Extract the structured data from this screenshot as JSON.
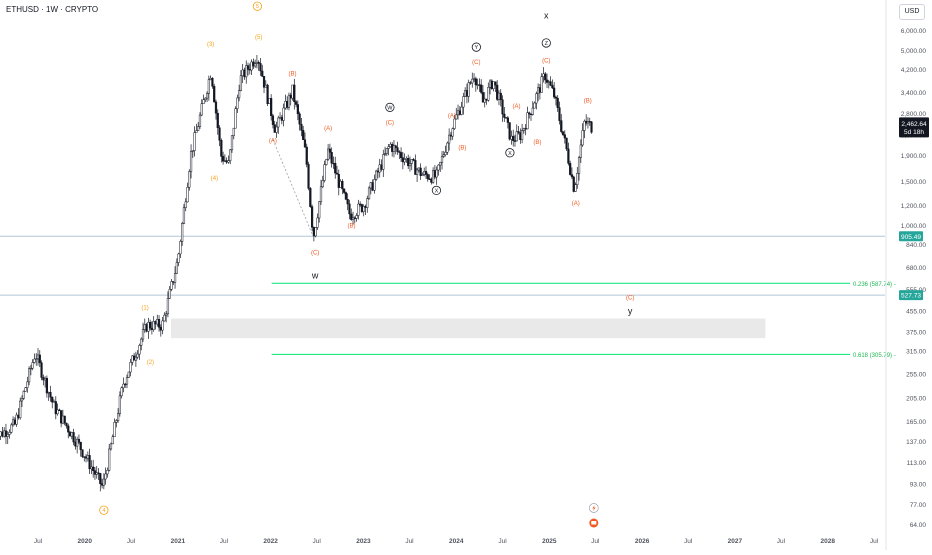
{
  "header": {
    "symbol_title": "ETHUSD · 1W · CRYPTO",
    "currency": "USD"
  },
  "colors": {
    "candle": "#131722",
    "wave_orange_primary": "#f7a21b",
    "wave_orange_intermediate": "#f05a22",
    "fib_line": "#00e676",
    "price_tag": "#131722",
    "level_tag": "#26a69a",
    "zone_fill": "#e9e9ea",
    "hline": "#b2c8d8"
  },
  "chart_data": {
    "type": "candlestick",
    "symbol": "ETHUSD",
    "interval": "1W",
    "exchange": "CRYPTO",
    "y_scale": "log",
    "ylim": [
      58,
      8000
    ],
    "y_ticks": [
      "6,000.00",
      "5,000.00",
      "4,200.00",
      "3,400.00",
      "2,800.00",
      "2,300.00",
      "1,900.00",
      "1,500.00",
      "1,200.00",
      "1,000.00",
      "840.00",
      "680.00",
      "555.00",
      "455.00",
      "375.00",
      "315.00",
      "255.00",
      "205.00",
      "165.00",
      "137.00",
      "113.00",
      "93.00",
      "77.00",
      "64.00"
    ],
    "y_tick_values": [
      6000,
      5000,
      4200,
      3400,
      2800,
      2300,
      1900,
      1500,
      1200,
      1000,
      840,
      680,
      555,
      455,
      375,
      315,
      255,
      205,
      165,
      137,
      113,
      93,
      77,
      64
    ],
    "x_ticks": [
      "Jul",
      "2020",
      "Jul",
      "2021",
      "Jul",
      "2022",
      "Jul",
      "2023",
      "Jul",
      "2024",
      "Jul",
      "2025",
      "Jul",
      "2026",
      "Jul",
      "2027",
      "Jul",
      "2028",
      "Jul"
    ],
    "x_tick_dates": [
      "2019-07-01",
      "2020-01-01",
      "2020-07-01",
      "2021-01-01",
      "2021-07-01",
      "2022-01-01",
      "2022-07-01",
      "2023-01-01",
      "2023-07-01",
      "2024-01-01",
      "2024-07-01",
      "2025-01-01",
      "2025-07-01",
      "2026-01-01",
      "2026-07-01",
      "2027-01-01",
      "2027-07-01",
      "2028-01-01",
      "2028-07-01"
    ],
    "price_anchors": [
      [
        "2019-01-01",
        140
      ],
      [
        "2019-04-01",
        160
      ],
      [
        "2019-06-20",
        310
      ],
      [
        "2019-09-01",
        190
      ],
      [
        "2019-12-15",
        130
      ],
      [
        "2020-03-12",
        90
      ],
      [
        "2020-06-01",
        235
      ],
      [
        "2020-09-01",
        400
      ],
      [
        "2020-11-01",
        400
      ],
      [
        "2021-01-01",
        730
      ],
      [
        "2021-02-20",
        1900
      ],
      [
        "2021-05-12",
        4150
      ],
      [
        "2021-06-20",
        1900
      ],
      [
        "2021-07-20",
        1750
      ],
      [
        "2021-09-01",
        3800
      ],
      [
        "2021-11-10",
        4800
      ],
      [
        "2022-01-20",
        2400
      ],
      [
        "2022-03-28",
        3450
      ],
      [
        "2022-05-20",
        1900
      ],
      [
        "2022-06-18",
        900
      ],
      [
        "2022-08-14",
        2000
      ],
      [
        "2022-11-09",
        1100
      ],
      [
        "2023-01-01",
        1200
      ],
      [
        "2023-04-15",
        2100
      ],
      [
        "2023-08-20",
        1600
      ],
      [
        "2023-10-15",
        1560
      ],
      [
        "2023-12-10",
        2400
      ],
      [
        "2024-03-12",
        4050
      ],
      [
        "2024-04-15",
        3100
      ],
      [
        "2024-05-25",
        3800
      ],
      [
        "2024-08-05",
        2200
      ],
      [
        "2024-09-10",
        2300
      ],
      [
        "2024-12-15",
        4000
      ],
      [
        "2025-01-20",
        3300
      ],
      [
        "2025-03-10",
        2000
      ],
      [
        "2025-04-09",
        1400
      ],
      [
        "2025-05-20",
        2600
      ],
      [
        "2025-06-20",
        2462.64
      ]
    ],
    "last_price": "2,462.64",
    "countdown": "5d 18h",
    "horizontal_levels": [
      {
        "price": 905,
        "label": "905.49",
        "style": "thin"
      },
      {
        "price": 527,
        "label": "527.73",
        "style": "thin"
      }
    ],
    "fib_levels": [
      {
        "label": "0.236 (587.74)",
        "price": 587.74,
        "start": "2022-01-05",
        "end": "2028-07-01"
      },
      {
        "label": "0.618 (305.79)",
        "price": 305.79,
        "start": "2022-01-05",
        "end": "2028-07-01"
      }
    ],
    "zones": [
      {
        "from_date": "2020-12-05",
        "to_date": "2027-05-01",
        "low": 355,
        "high": 425
      }
    ],
    "wave_labels": [
      {
        "text": "4",
        "date": "2020-03-16",
        "price": 73,
        "circled": true,
        "color": "primary"
      },
      {
        "text": "5",
        "date": "2021-11-10",
        "price": 7500,
        "circled": true,
        "color": "primary"
      },
      {
        "text": "(1)",
        "date": "2020-08-25",
        "price": 470,
        "circled": false,
        "color": "primary"
      },
      {
        "text": "(2)",
        "date": "2020-09-15",
        "price": 285,
        "circled": false,
        "color": "primary"
      },
      {
        "text": "(3)",
        "date": "2021-05-10",
        "price": 5300,
        "circled": false,
        "color": "primary"
      },
      {
        "text": "(4)",
        "date": "2021-05-25",
        "price": 1550,
        "circled": false,
        "color": "primary"
      },
      {
        "text": "(5)",
        "date": "2021-11-15",
        "price": 5650,
        "circled": false,
        "color": "primary"
      },
      {
        "text": "(A)",
        "date": "2022-01-10",
        "price": 2180,
        "circled": false,
        "color": "intermediate"
      },
      {
        "text": "(B)",
        "date": "2022-03-28",
        "price": 4050,
        "circled": false,
        "color": "intermediate"
      },
      {
        "text": "(C)",
        "date": "2022-06-25",
        "price": 780,
        "circled": false,
        "color": "intermediate"
      },
      {
        "text": "w",
        "date": "2022-06-25",
        "price": 630,
        "circled": false,
        "color": "dark"
      },
      {
        "text": "(A)",
        "date": "2022-08-15",
        "price": 2450,
        "circled": false,
        "color": "intermediate"
      },
      {
        "text": "(B)",
        "date": "2022-11-15",
        "price": 1000,
        "circled": false,
        "color": "intermediate"
      },
      {
        "text": "W",
        "date": "2023-04-15",
        "price": 2960,
        "circled": true,
        "color": "dark"
      },
      {
        "text": "(C)",
        "date": "2023-04-15",
        "price": 2580,
        "circled": false,
        "color": "intermediate"
      },
      {
        "text": "X",
        "date": "2023-10-15",
        "price": 1380,
        "circled": true,
        "color": "dark"
      },
      {
        "text": "(A)",
        "date": "2023-12-15",
        "price": 2750,
        "circled": false,
        "color": "intermediate"
      },
      {
        "text": "(B)",
        "date": "2024-01-25",
        "price": 2050,
        "circled": false,
        "color": "intermediate"
      },
      {
        "text": "Y",
        "date": "2024-03-20",
        "price": 5150,
        "circled": true,
        "color": "dark"
      },
      {
        "text": "(C)",
        "date": "2024-03-20",
        "price": 4500,
        "circled": false,
        "color": "intermediate"
      },
      {
        "text": "(A)",
        "date": "2024-08-25",
        "price": 3000,
        "circled": false,
        "color": "intermediate"
      },
      {
        "text": "X",
        "date": "2024-07-30",
        "price": 1950,
        "circled": true,
        "color": "dark"
      },
      {
        "text": "(B)",
        "date": "2024-11-15",
        "price": 2150,
        "circled": false,
        "color": "intermediate"
      },
      {
        "text": "x",
        "date": "2024-12-20",
        "price": 6900,
        "circled": false,
        "color": "dark"
      },
      {
        "text": "Z",
        "date": "2024-12-20",
        "price": 5350,
        "circled": true,
        "color": "dark"
      },
      {
        "text": "(C)",
        "date": "2024-12-20",
        "price": 4550,
        "circled": false,
        "color": "intermediate"
      },
      {
        "text": "(B)",
        "date": "2025-06-01",
        "price": 3150,
        "circled": false,
        "color": "intermediate"
      },
      {
        "text": "(A)",
        "date": "2025-04-15",
        "price": 1230,
        "circled": false,
        "color": "intermediate"
      },
      {
        "text": "(C)",
        "date": "2025-11-15",
        "price": 515,
        "circled": false,
        "color": "intermediate"
      },
      {
        "text": "y",
        "date": "2025-11-15",
        "price": 455,
        "circled": false,
        "color": "dark"
      }
    ],
    "dashed_segments": [
      {
        "from_date": "2022-01-10",
        "from_price": 2200,
        "to_date": "2022-06-18",
        "to_price": 900
      }
    ]
  }
}
